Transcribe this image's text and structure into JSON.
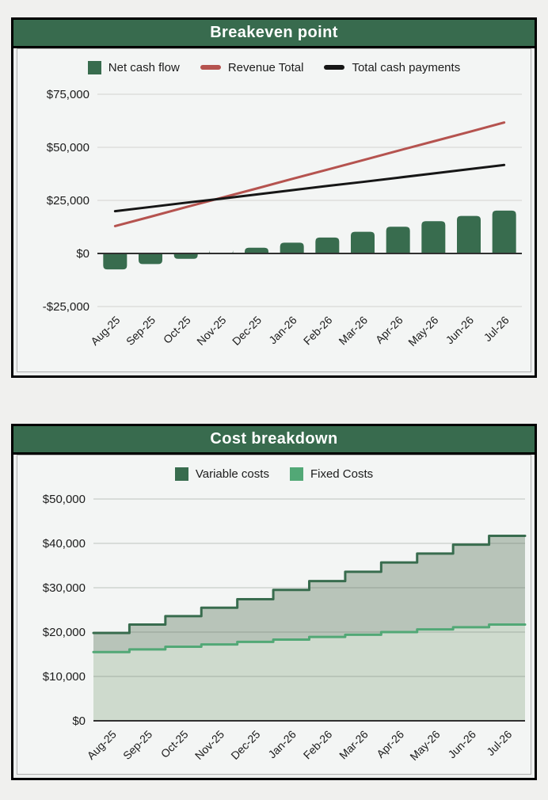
{
  "colors": {
    "page_background": "#f0f0ee",
    "panel_background": "#f3f5f4",
    "panel_border": "#000000",
    "inner_border": "#b0b0b0",
    "header_green": "#386b4e",
    "dark_green": "#386c4e",
    "light_green": "#52a876",
    "brick_red": "#b5534f",
    "line_black": "#161616",
    "grid_gray": "#d9dad8",
    "axis_dark": "#303030",
    "area_fill_variable": "#b8c4b9",
    "area_fill_fixed": "#cedacd",
    "title_text": "#ffffff"
  },
  "chart_data": [
    {
      "type": "bar+line combo",
      "title": "Breakeven point",
      "categories": [
        "Aug-25",
        "Sep-25",
        "Oct-25",
        "Nov-25",
        "Dec-25",
        "Jan-26",
        "Feb-26",
        "Mar-26",
        "Apr-26",
        "May-26",
        "Jun-26",
        "Jul-26"
      ],
      "series": [
        {
          "name": "Net cash flow",
          "type": "bar",
          "marker": "square",
          "color": "#386c4e",
          "values": [
            -7500,
            -5000,
            -2500,
            -300,
            2700,
            5100,
            7500,
            10200,
            12600,
            15200,
            17700,
            20200
          ]
        },
        {
          "name": "Revenue Total",
          "type": "line",
          "marker": "dash",
          "color": "#b5534f",
          "values": [
            12900,
            17300,
            21800,
            26200,
            30600,
            35100,
            39500,
            43900,
            48400,
            52800,
            57200,
            61700
          ]
        },
        {
          "name": "Total cash payments",
          "type": "line",
          "marker": "dash",
          "color": "#161616",
          "values": [
            19900,
            21900,
            23900,
            25800,
            27800,
            29800,
            31800,
            33700,
            35700,
            37700,
            39700,
            41700
          ]
        }
      ],
      "ylim": [
        -25000,
        75000
      ],
      "yticks": [
        {
          "value": 75000,
          "label": "$75,000"
        },
        {
          "value": 50000,
          "label": "$50,000"
        },
        {
          "value": 25000,
          "label": "$25,000"
        },
        {
          "value": 0,
          "label": "$0"
        },
        {
          "value": -25000,
          "label": "-$25,000"
        }
      ],
      "grid": true,
      "legend_position": "top",
      "xlabel": "",
      "ylabel": ""
    },
    {
      "type": "step-area",
      "title": "Cost breakdown",
      "categories": [
        "Aug-25",
        "Sep-25",
        "Oct-25",
        "Nov-25",
        "Dec-25",
        "Jan-26",
        "Feb-26",
        "Mar-26",
        "Apr-26",
        "May-26",
        "Jun-26",
        "Jul-26"
      ],
      "series": [
        {
          "name": "Variable costs",
          "marker": "square",
          "color": "#386c4e",
          "fill": "#b8c4b9",
          "values": [
            19800,
            21700,
            23600,
            25500,
            27400,
            29500,
            31500,
            33600,
            35700,
            37700,
            39700,
            41700
          ]
        },
        {
          "name": "Fixed Costs",
          "marker": "square",
          "color": "#52a876",
          "fill": "#cedacd",
          "values": [
            15500,
            16100,
            16700,
            17200,
            17800,
            18300,
            18900,
            19400,
            20000,
            20600,
            21100,
            21700
          ]
        }
      ],
      "ylim": [
        0,
        50000
      ],
      "yticks": [
        {
          "value": 50000,
          "label": "$50,000"
        },
        {
          "value": 40000,
          "label": "$40,000"
        },
        {
          "value": 30000,
          "label": "$30,000"
        },
        {
          "value": 20000,
          "label": "$20,000"
        },
        {
          "value": 10000,
          "label": "$10,000"
        },
        {
          "value": 0,
          "label": "$0"
        }
      ],
      "grid": true,
      "legend_position": "top",
      "xlabel": "",
      "ylabel": ""
    }
  ]
}
